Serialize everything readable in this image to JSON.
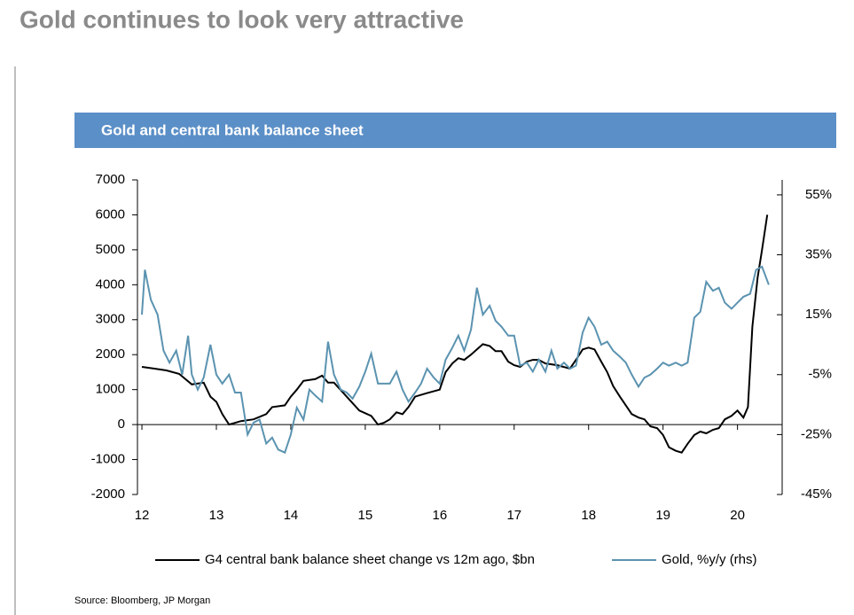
{
  "header": {
    "title": "Gold continues to look very attractive"
  },
  "chart_data": {
    "type": "line",
    "title": "Gold and central bank balance sheet",
    "source": "Source: Bloomberg, JP Morgan",
    "xlim": [
      11.94,
      20.6
    ],
    "xticks": [
      12,
      13,
      14,
      15,
      16,
      17,
      18,
      19,
      20
    ],
    "ylim": [
      -2000,
      7000
    ],
    "yticks": [
      -2000,
      -1000,
      0,
      1000,
      2000,
      3000,
      4000,
      5000,
      6000,
      7000
    ],
    "y2lim": [
      -45,
      60
    ],
    "y2ticks": [
      {
        "value": -45,
        "label": "-45%"
      },
      {
        "value": -25,
        "label": "-25%"
      },
      {
        "value": -5,
        "label": "-5%"
      },
      {
        "value": 15,
        "label": "15%"
      },
      {
        "value": 35,
        "label": "35%"
      },
      {
        "value": 55,
        "label": "55%"
      }
    ],
    "series": [
      {
        "name": "G4 central bank balance sheet change vs 12m ago, $bn",
        "color": "#000000",
        "x": [
          12.0,
          12.17,
          12.33,
          12.5,
          12.67,
          12.83,
          12.92,
          13.0,
          13.08,
          13.17,
          13.33,
          13.5,
          13.67,
          13.75,
          13.92,
          14.0,
          14.08,
          14.17,
          14.33,
          14.42,
          14.5,
          14.58,
          14.75,
          14.92,
          15.08,
          15.17,
          15.25,
          15.33,
          15.42,
          15.5,
          15.58,
          15.67,
          15.83,
          16.0,
          16.08,
          16.17,
          16.25,
          16.33,
          16.42,
          16.5,
          16.58,
          16.67,
          16.75,
          16.83,
          16.92,
          17.0,
          17.08,
          17.17,
          17.25,
          17.33,
          17.42,
          17.58,
          17.75,
          17.83,
          17.92,
          18.0,
          18.08,
          18.17,
          18.25,
          18.33,
          18.42,
          18.5,
          18.58,
          18.67,
          18.75,
          18.83,
          18.92,
          19.0,
          19.08,
          19.17,
          19.25,
          19.33,
          19.42,
          19.5,
          19.58,
          19.67,
          19.75,
          19.83,
          19.92,
          20.0,
          20.08,
          20.14,
          20.2,
          20.27,
          20.33,
          20.4
        ],
        "values": [
          1650,
          1600,
          1550,
          1450,
          1150,
          1200,
          800,
          650,
          300,
          0,
          100,
          150,
          300,
          500,
          550,
          800,
          1000,
          1250,
          1300,
          1400,
          1200,
          1200,
          800,
          400,
          250,
          0,
          50,
          150,
          350,
          300,
          500,
          800,
          900,
          1000,
          1500,
          1750,
          1900,
          1850,
          2000,
          2150,
          2300,
          2250,
          2100,
          2100,
          1800,
          1700,
          1650,
          1800,
          1850,
          1850,
          1750,
          1700,
          1600,
          1850,
          2150,
          2200,
          2150,
          1800,
          1500,
          1100,
          800,
          550,
          300,
          200,
          150,
          -50,
          -100,
          -300,
          -650,
          -750,
          -800,
          -550,
          -300,
          -200,
          -250,
          -150,
          -100,
          150,
          250,
          400,
          200,
          500,
          2800,
          4200,
          5000,
          6000
        ]
      },
      {
        "name": "Gold, %y/y (rhs)",
        "color": "#5b93b0",
        "axis": "y2",
        "x": [
          12.0,
          12.04,
          12.12,
          12.21,
          12.29,
          12.37,
          12.46,
          12.54,
          12.62,
          12.67,
          12.75,
          12.83,
          12.92,
          13.0,
          13.08,
          13.17,
          13.25,
          13.33,
          13.42,
          13.5,
          13.58,
          13.67,
          13.75,
          13.83,
          13.92,
          14.0,
          14.08,
          14.17,
          14.25,
          14.33,
          14.42,
          14.5,
          14.58,
          14.67,
          14.75,
          14.83,
          14.92,
          15.0,
          15.08,
          15.17,
          15.25,
          15.33,
          15.42,
          15.5,
          15.58,
          15.67,
          15.75,
          15.83,
          15.92,
          16.0,
          16.08,
          16.17,
          16.25,
          16.33,
          16.42,
          16.5,
          16.58,
          16.67,
          16.75,
          16.83,
          16.92,
          17.0,
          17.08,
          17.17,
          17.25,
          17.33,
          17.42,
          17.5,
          17.58,
          17.67,
          17.75,
          17.83,
          17.92,
          18.0,
          18.08,
          18.17,
          18.25,
          18.33,
          18.42,
          18.5,
          18.58,
          18.67,
          18.75,
          18.83,
          18.92,
          19.0,
          19.08,
          19.17,
          19.25,
          19.33,
          19.42,
          19.5,
          19.58,
          19.67,
          19.75,
          19.83,
          19.92,
          20.0,
          20.08,
          20.17,
          20.25,
          20.33,
          20.42
        ],
        "values": [
          15,
          30,
          20,
          15,
          3,
          -1,
          3,
          -5,
          8,
          -5,
          -10,
          -6,
          5,
          -5,
          -8,
          -5,
          -11,
          -11,
          -25,
          -21,
          -20,
          -28,
          -26,
          -30,
          -31,
          -25,
          -16,
          -20,
          -10,
          -12,
          -14,
          6,
          -5,
          -10,
          -11,
          -13,
          -9,
          -4,
          2,
          -8,
          -8,
          -8,
          -4,
          -10,
          -14,
          -11,
          -8,
          -3,
          -6,
          -8,
          0,
          4,
          8,
          3,
          10,
          24,
          15,
          18,
          13,
          11,
          8,
          8,
          -2,
          -1,
          -4,
          0,
          -4,
          3,
          -3,
          -1,
          -3,
          -2,
          9,
          14,
          11,
          5,
          6,
          3,
          1,
          -1,
          -5,
          -9,
          -6,
          -5,
          -3,
          -1,
          -2,
          -1,
          -2,
          -1,
          14,
          16,
          26,
          23,
          24,
          19,
          17,
          19,
          21,
          22,
          30,
          31,
          25
        ]
      }
    ]
  }
}
